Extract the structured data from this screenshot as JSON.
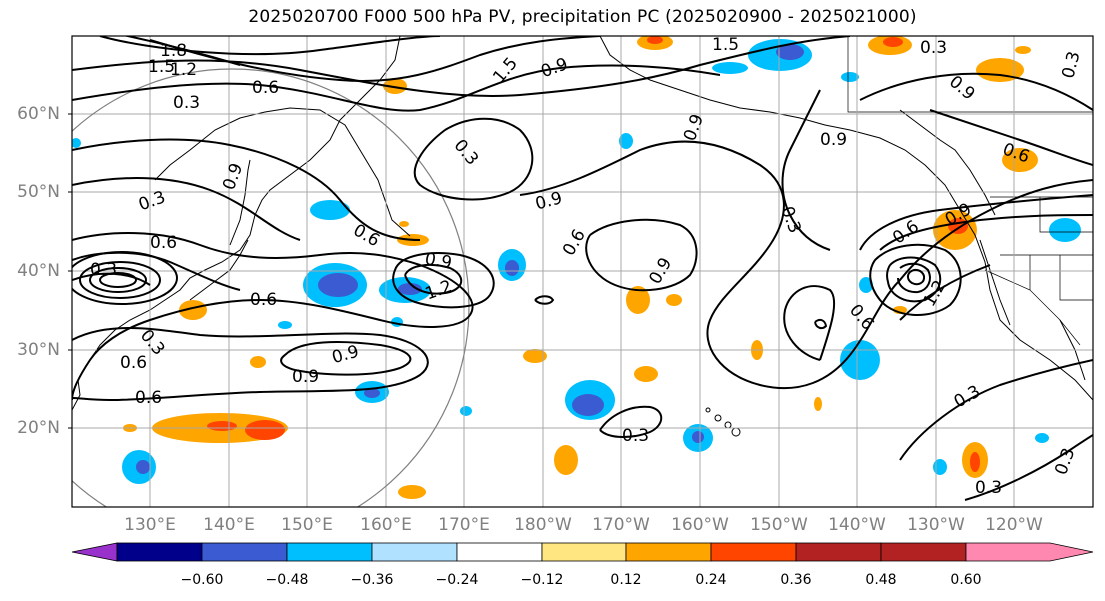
{
  "title": "2025020700 F000 500 hPa PV, precipitation PC (2025020900 - 2025021000)",
  "lat_labels": [
    "60°N",
    "50°N",
    "40°N",
    "30°N",
    "20°N"
  ],
  "lon_labels": [
    "130°E",
    "140°E",
    "150°E",
    "160°E",
    "170°E",
    "180°W",
    "170°W",
    "160°W",
    "150°W",
    "140°W",
    "130°W",
    "120°W"
  ],
  "colorbar": {
    "ticks": [
      "−0.60",
      "−0.48",
      "−0.36",
      "−0.24",
      "−0.12",
      "0.12",
      "0.24",
      "0.36",
      "0.48",
      "0.60"
    ],
    "colors": [
      "#9932CC",
      "#00008B",
      "#3A5BD1",
      "#00BFFF",
      "#B0E2FF",
      "#FFFFFF",
      "#FFE680",
      "#FFA500",
      "#FF4500",
      "#B22222",
      "#FF88B0"
    ]
  },
  "contour_labels": [
    "1.8",
    "1.5",
    "1.2",
    "0.6",
    "0.3",
    "1.5",
    "0.9",
    "1.5",
    "0.3",
    "0.9",
    "0.3",
    "0.9",
    "0.9",
    "0.6",
    "0.9",
    "0.3",
    "0.3",
    "0.9",
    "0.6",
    "0.9",
    "0.3",
    "0.6",
    "0.9",
    "0.6",
    "1.2",
    "0.6",
    "0.9",
    "0.6",
    "0.9",
    "1.2",
    "0.6",
    "0.6",
    "0.9",
    "0.6",
    "0.3",
    "0.3",
    "0.3",
    "0.3",
    "0.3",
    "0.3"
  ]
}
